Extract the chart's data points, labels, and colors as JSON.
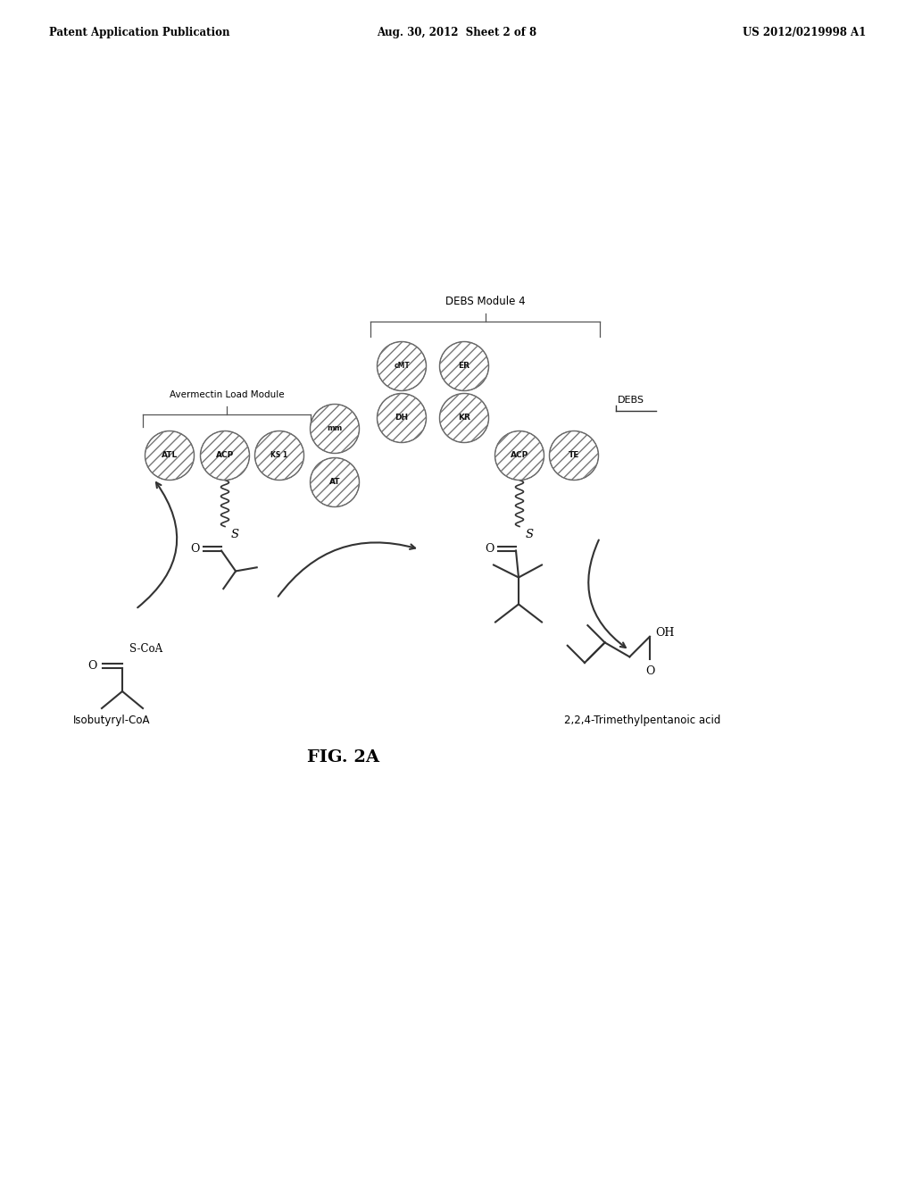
{
  "header_left": "Patent Application Publication",
  "header_center": "Aug. 30, 2012  Sheet 2 of 8",
  "header_right": "US 2012/0219998 A1",
  "figure_label": "FIG. 2A",
  "avermectin_label": "Avermectin Load Module",
  "debs_module_label": "DEBS Module 4",
  "debs_label": "DEBS",
  "isobutyryl_label": "Isobutyryl-CoA",
  "product_label": "2,2,4-Trimethylpentanoic acid",
  "bg_color": "#ffffff",
  "text_color": "#000000",
  "line_color": "#333333"
}
